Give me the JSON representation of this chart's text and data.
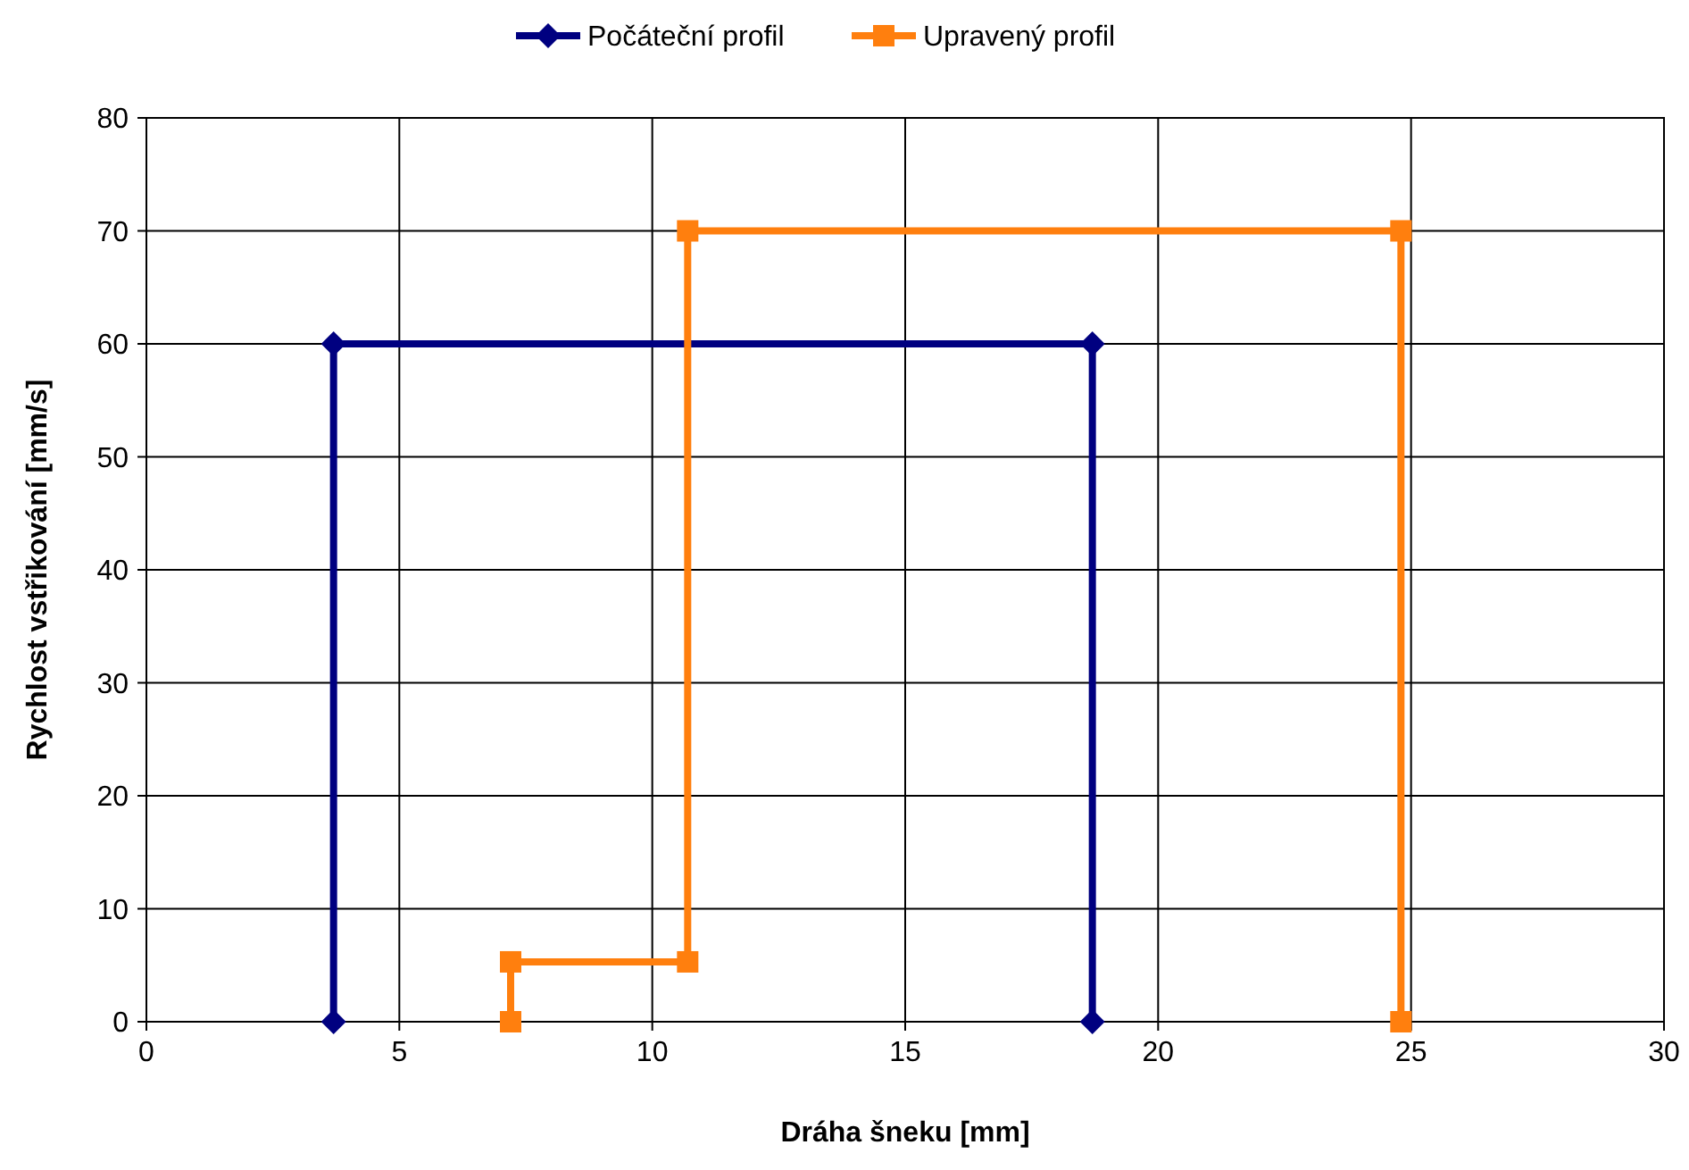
{
  "chart_data": {
    "type": "line",
    "xlabel": "Dráha šneku [mm]",
    "ylabel": "Rychlost vstřikování [mm/s]",
    "xlim": [
      0,
      30
    ],
    "xticks": [
      0,
      5,
      10,
      15,
      20,
      25,
      30
    ],
    "ylim": [
      0,
      80
    ],
    "yticks": [
      0,
      10,
      20,
      30,
      40,
      50,
      60,
      70,
      80
    ],
    "grid": true,
    "legend": "top",
    "line_style": "solid",
    "series": [
      {
        "name": "Počáteční profil",
        "color": "#000080",
        "marker": "diamond",
        "x": [
          3.7,
          3.7,
          18.7,
          18.7
        ],
        "values": [
          0,
          60,
          60,
          0
        ]
      },
      {
        "name": "Upravený profil",
        "color": "#ff7f0e",
        "marker": "square",
        "x": [
          7.2,
          7.2,
          10.7,
          10.7,
          24.8,
          24.8
        ],
        "values": [
          0,
          5.3,
          5.3,
          70,
          70,
          0
        ]
      }
    ]
  }
}
